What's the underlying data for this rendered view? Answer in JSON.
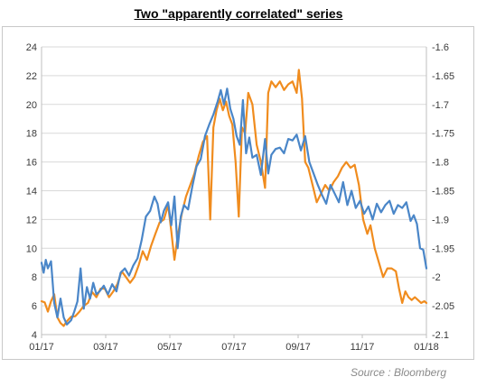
{
  "title": "Two \"apparently correlated\" series",
  "source": "Source : Bloomberg",
  "chart_data": {
    "type": "line",
    "title": "Two \"apparently correlated\" series",
    "x_ticks": [
      "01/17",
      "03/17",
      "05/17",
      "07/17",
      "09/17",
      "11/17",
      "01/18"
    ],
    "x_range": [
      "2017-01-01",
      "2018-01-01"
    ],
    "y_left": {
      "ticks": [
        4,
        6,
        8,
        10,
        12,
        14,
        16,
        18,
        20,
        22,
        24
      ],
      "range": [
        4,
        24
      ]
    },
    "y_right": {
      "ticks": [
        -1.6,
        -1.65,
        -1.7,
        -1.75,
        -1.8,
        -1.85,
        -1.9,
        -1.95,
        -2,
        -2.05,
        -2.1
      ],
      "range": [
        -2.1,
        -1.6
      ]
    },
    "grid": "horizontal",
    "legend": "none",
    "series": [
      {
        "axis": "left",
        "color": "#4a86c8",
        "points": [
          [
            "2017-01-01",
            9.0
          ],
          [
            "2017-01-03",
            8.3
          ],
          [
            "2017-01-05",
            9.2
          ],
          [
            "2017-01-07",
            8.6
          ],
          [
            "2017-01-10",
            9.1
          ],
          [
            "2017-01-13",
            6.2
          ],
          [
            "2017-01-16",
            5.2
          ],
          [
            "2017-01-19",
            6.5
          ],
          [
            "2017-01-22",
            5.2
          ],
          [
            "2017-01-25",
            4.7
          ],
          [
            "2017-01-29",
            5.0
          ],
          [
            "2017-02-01",
            5.6
          ],
          [
            "2017-02-04",
            6.3
          ],
          [
            "2017-02-07",
            8.6
          ],
          [
            "2017-02-10",
            5.8
          ],
          [
            "2017-02-13",
            7.3
          ],
          [
            "2017-02-16",
            6.5
          ],
          [
            "2017-02-19",
            7.6
          ],
          [
            "2017-02-22",
            6.8
          ],
          [
            "2017-02-25",
            7.0
          ],
          [
            "2017-03-01",
            7.4
          ],
          [
            "2017-03-05",
            6.8
          ],
          [
            "2017-03-09",
            7.5
          ],
          [
            "2017-03-13",
            7.0
          ],
          [
            "2017-03-17",
            8.3
          ],
          [
            "2017-03-21",
            8.6
          ],
          [
            "2017-03-25",
            8.1
          ],
          [
            "2017-03-29",
            8.8
          ],
          [
            "2017-04-02",
            9.3
          ],
          [
            "2017-04-06",
            10.6
          ],
          [
            "2017-04-10",
            12.2
          ],
          [
            "2017-04-14",
            12.6
          ],
          [
            "2017-04-18",
            13.6
          ],
          [
            "2017-04-21",
            13.1
          ],
          [
            "2017-04-24",
            11.8
          ],
          [
            "2017-04-27",
            12.6
          ],
          [
            "2017-05-01",
            13.2
          ],
          [
            "2017-05-04",
            11.6
          ],
          [
            "2017-05-07",
            13.6
          ],
          [
            "2017-05-10",
            10.0
          ],
          [
            "2017-05-13",
            12.2
          ],
          [
            "2017-05-16",
            13.0
          ],
          [
            "2017-05-20",
            12.7
          ],
          [
            "2017-05-24",
            14.3
          ],
          [
            "2017-05-28",
            15.7
          ],
          [
            "2017-06-01",
            16.2
          ],
          [
            "2017-06-05",
            17.8
          ],
          [
            "2017-06-09",
            18.6
          ],
          [
            "2017-06-13",
            19.3
          ],
          [
            "2017-06-17",
            20.2
          ],
          [
            "2017-06-20",
            21.0
          ],
          [
            "2017-06-23",
            20.0
          ],
          [
            "2017-06-26",
            21.1
          ],
          [
            "2017-06-29",
            19.7
          ],
          [
            "2017-07-02",
            19.0
          ],
          [
            "2017-07-05",
            17.8
          ],
          [
            "2017-07-08",
            17.2
          ],
          [
            "2017-07-11",
            20.3
          ],
          [
            "2017-07-14",
            16.6
          ],
          [
            "2017-07-17",
            17.7
          ],
          [
            "2017-07-20",
            16.3
          ],
          [
            "2017-07-24",
            16.5
          ],
          [
            "2017-07-28",
            15.1
          ],
          [
            "2017-08-01",
            17.6
          ],
          [
            "2017-08-04",
            15.2
          ],
          [
            "2017-08-07",
            16.5
          ],
          [
            "2017-08-11",
            16.9
          ],
          [
            "2017-08-15",
            17.0
          ],
          [
            "2017-08-19",
            16.6
          ],
          [
            "2017-08-23",
            17.6
          ],
          [
            "2017-08-27",
            17.5
          ],
          [
            "2017-08-31",
            17.9
          ],
          [
            "2017-09-04",
            16.8
          ],
          [
            "2017-09-08",
            17.8
          ],
          [
            "2017-09-12",
            16.0
          ],
          [
            "2017-09-16",
            15.2
          ],
          [
            "2017-09-20",
            14.4
          ],
          [
            "2017-09-24",
            13.7
          ],
          [
            "2017-09-28",
            13.1
          ],
          [
            "2017-10-02",
            14.4
          ],
          [
            "2017-10-06",
            13.8
          ],
          [
            "2017-10-10",
            13.2
          ],
          [
            "2017-10-14",
            14.6
          ],
          [
            "2017-10-18",
            13.0
          ],
          [
            "2017-10-22",
            14.0
          ],
          [
            "2017-10-26",
            12.8
          ],
          [
            "2017-10-30",
            13.3
          ],
          [
            "2017-11-03",
            12.4
          ],
          [
            "2017-11-07",
            12.9
          ],
          [
            "2017-11-11",
            12.0
          ],
          [
            "2017-11-15",
            13.1
          ],
          [
            "2017-11-19",
            12.5
          ],
          [
            "2017-11-23",
            13.0
          ],
          [
            "2017-11-27",
            13.3
          ],
          [
            "2017-12-01",
            12.4
          ],
          [
            "2017-12-05",
            13.0
          ],
          [
            "2017-12-09",
            12.8
          ],
          [
            "2017-12-13",
            13.2
          ],
          [
            "2017-12-17",
            11.9
          ],
          [
            "2017-12-20",
            12.3
          ],
          [
            "2017-12-23",
            11.7
          ],
          [
            "2017-12-26",
            10.0
          ],
          [
            "2017-12-29",
            9.9
          ],
          [
            "2018-01-01",
            8.6
          ]
        ]
      },
      {
        "axis": "right",
        "color": "#f08c1e",
        "points": [
          [
            "2017-01-01",
            -2.042
          ],
          [
            "2017-01-04",
            -2.044
          ],
          [
            "2017-01-07",
            -2.06
          ],
          [
            "2017-01-10",
            -2.042
          ],
          [
            "2017-01-13",
            -2.03
          ],
          [
            "2017-01-16",
            -2.07
          ],
          [
            "2017-01-19",
            -2.08
          ],
          [
            "2017-01-22",
            -2.085
          ],
          [
            "2017-01-25",
            -2.077
          ],
          [
            "2017-01-29",
            -2.069
          ],
          [
            "2017-02-02",
            -2.068
          ],
          [
            "2017-02-06",
            -2.06
          ],
          [
            "2017-02-10",
            -2.05
          ],
          [
            "2017-02-14",
            -2.045
          ],
          [
            "2017-02-18",
            -2.026
          ],
          [
            "2017-02-22",
            -2.035
          ],
          [
            "2017-02-26",
            -2.02
          ],
          [
            "2017-03-02",
            -2.02
          ],
          [
            "2017-03-06",
            -2.035
          ],
          [
            "2017-03-10",
            -2.025
          ],
          [
            "2017-03-14",
            -2.012
          ],
          [
            "2017-03-18",
            -1.99
          ],
          [
            "2017-03-22",
            -2.0
          ],
          [
            "2017-03-26",
            -2.01
          ],
          [
            "2017-03-30",
            -2.0
          ],
          [
            "2017-04-03",
            -1.98
          ],
          [
            "2017-04-07",
            -1.955
          ],
          [
            "2017-04-11",
            -1.97
          ],
          [
            "2017-04-15",
            -1.945
          ],
          [
            "2017-04-19",
            -1.925
          ],
          [
            "2017-04-23",
            -1.905
          ],
          [
            "2017-04-27",
            -1.9
          ],
          [
            "2017-05-01",
            -1.875
          ],
          [
            "2017-05-04",
            -1.92
          ],
          [
            "2017-05-07",
            -1.97
          ],
          [
            "2017-05-10",
            -1.93
          ],
          [
            "2017-05-14",
            -1.89
          ],
          [
            "2017-05-18",
            -1.86
          ],
          [
            "2017-05-22",
            -1.84
          ],
          [
            "2017-05-26",
            -1.82
          ],
          [
            "2017-05-30",
            -1.79
          ],
          [
            "2017-06-03",
            -1.765
          ],
          [
            "2017-06-07",
            -1.755
          ],
          [
            "2017-06-10",
            -1.9
          ],
          [
            "2017-06-13",
            -1.74
          ],
          [
            "2017-06-16",
            -1.71
          ],
          [
            "2017-06-19",
            -1.69
          ],
          [
            "2017-06-22",
            -1.71
          ],
          [
            "2017-06-25",
            -1.695
          ],
          [
            "2017-06-28",
            -1.72
          ],
          [
            "2017-07-01",
            -1.735
          ],
          [
            "2017-07-04",
            -1.8
          ],
          [
            "2017-07-07",
            -1.895
          ],
          [
            "2017-07-10",
            -1.74
          ],
          [
            "2017-07-13",
            -1.75
          ],
          [
            "2017-07-16",
            -1.68
          ],
          [
            "2017-07-20",
            -1.7
          ],
          [
            "2017-07-24",
            -1.77
          ],
          [
            "2017-07-28",
            -1.8
          ],
          [
            "2017-08-01",
            -1.845
          ],
          [
            "2017-08-04",
            -1.68
          ],
          [
            "2017-08-07",
            -1.66
          ],
          [
            "2017-08-11",
            -1.67
          ],
          [
            "2017-08-15",
            -1.66
          ],
          [
            "2017-08-19",
            -1.675
          ],
          [
            "2017-08-23",
            -1.665
          ],
          [
            "2017-08-27",
            -1.66
          ],
          [
            "2017-08-31",
            -1.68
          ],
          [
            "2017-09-02",
            -1.64
          ],
          [
            "2017-09-05",
            -1.69
          ],
          [
            "2017-09-08",
            -1.8
          ],
          [
            "2017-09-11",
            -1.81
          ],
          [
            "2017-09-15",
            -1.84
          ],
          [
            "2017-09-19",
            -1.87
          ],
          [
            "2017-09-23",
            -1.855
          ],
          [
            "2017-09-27",
            -1.84
          ],
          [
            "2017-10-01",
            -1.85
          ],
          [
            "2017-10-05",
            -1.835
          ],
          [
            "2017-10-09",
            -1.825
          ],
          [
            "2017-10-13",
            -1.81
          ],
          [
            "2017-10-17",
            -1.8
          ],
          [
            "2017-10-21",
            -1.81
          ],
          [
            "2017-10-25",
            -1.805
          ],
          [
            "2017-10-29",
            -1.84
          ],
          [
            "2017-11-02",
            -1.9
          ],
          [
            "2017-11-06",
            -1.925
          ],
          [
            "2017-11-09",
            -1.91
          ],
          [
            "2017-11-13",
            -1.95
          ],
          [
            "2017-11-17",
            -1.975
          ],
          [
            "2017-11-21",
            -2.0
          ],
          [
            "2017-11-25",
            -1.985
          ],
          [
            "2017-11-29",
            -1.985
          ],
          [
            "2017-12-03",
            -1.99
          ],
          [
            "2017-12-06",
            -2.02
          ],
          [
            "2017-12-09",
            -2.045
          ],
          [
            "2017-12-12",
            -2.025
          ],
          [
            "2017-12-15",
            -2.035
          ],
          [
            "2017-12-18",
            -2.04
          ],
          [
            "2017-12-21",
            -2.035
          ],
          [
            "2017-12-24",
            -2.04
          ],
          [
            "2017-12-27",
            -2.045
          ],
          [
            "2017-12-30",
            -2.042
          ],
          [
            "2018-01-01",
            -2.045
          ]
        ]
      }
    ]
  }
}
